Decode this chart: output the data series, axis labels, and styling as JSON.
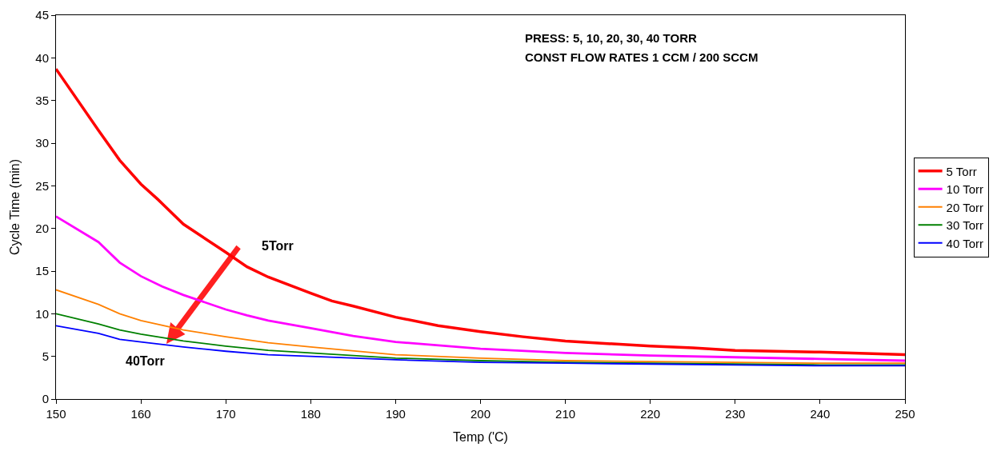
{
  "chart_data": {
    "type": "line",
    "xlabel": "Temp ('C)",
    "ylabel": "Cycle Time (min)",
    "xlim": [
      150,
      250
    ],
    "xticks": [
      150,
      160,
      170,
      180,
      190,
      200,
      210,
      220,
      230,
      240,
      250
    ],
    "ylim": [
      0,
      45
    ],
    "yticks": [
      0,
      5,
      10,
      15,
      20,
      25,
      30,
      35,
      40,
      45
    ],
    "grid": false,
    "legend": "right",
    "marker": "none",
    "line_style": "solid",
    "annotations": [
      "PRESS: 5, 10, 20, 30, 40 TORR",
      "CONST FLOW RATES 1 CCM / 200 SCCM",
      "5Torr",
      "40Torr"
    ],
    "series": [
      {
        "name": "5 Torr",
        "color": "#ff0000",
        "x": [
          150,
          155,
          157.5,
          160,
          162,
          165,
          170,
          172.5,
          175,
          180,
          182.5,
          185,
          190,
          195,
          200,
          205,
          210,
          215,
          220,
          225,
          230,
          240,
          250
        ],
        "values": [
          38.7,
          31.5,
          28,
          25.2,
          23.4,
          20.5,
          17.2,
          15.5,
          14.3,
          12.4,
          11.5,
          10.9,
          9.6,
          8.6,
          7.9,
          7.3,
          6.8,
          6.5,
          6.2,
          6.0,
          5.7,
          5.5,
          5.2
        ]
      },
      {
        "name": "10 Torr",
        "color": "#ff00ff",
        "x": [
          150,
          155,
          157.5,
          160,
          162.5,
          165,
          170,
          172.5,
          175,
          180,
          185,
          190,
          200,
          210,
          220,
          230,
          240,
          250
        ],
        "values": [
          21.4,
          18.4,
          16,
          14.4,
          13.2,
          12.2,
          10.5,
          9.8,
          9.2,
          8.3,
          7.4,
          6.7,
          5.9,
          5.4,
          5.1,
          4.9,
          4.7,
          4.5
        ]
      },
      {
        "name": "20 Torr",
        "color": "#ff8000",
        "x": [
          150,
          155,
          157.5,
          160,
          165,
          170,
          175,
          180,
          190,
          200,
          210,
          220,
          230,
          240,
          250
        ],
        "values": [
          12.8,
          11.1,
          10,
          9.2,
          8.1,
          7.3,
          6.6,
          6.1,
          5.2,
          4.8,
          4.5,
          4.4,
          4.3,
          4.2,
          4.2
        ]
      },
      {
        "name": "30 Torr",
        "color": "#008000",
        "x": [
          150,
          155,
          157.5,
          160,
          165,
          170,
          175,
          180,
          190,
          200,
          210,
          220,
          230,
          240,
          250
        ],
        "values": [
          10,
          8.8,
          8.1,
          7.6,
          6.8,
          6.2,
          5.7,
          5.4,
          4.8,
          4.5,
          4.3,
          4.2,
          4.1,
          4.0,
          4.0
        ]
      },
      {
        "name": "40 Torr",
        "color": "#0000ff",
        "x": [
          150,
          155,
          157.5,
          160,
          165,
          170,
          175,
          180,
          190,
          200,
          210,
          220,
          230,
          240,
          250
        ],
        "values": [
          8.6,
          7.7,
          7.0,
          6.7,
          6.1,
          5.6,
          5.2,
          5.0,
          4.6,
          4.3,
          4.2,
          4.1,
          4.0,
          3.9,
          3.9
        ]
      }
    ]
  }
}
